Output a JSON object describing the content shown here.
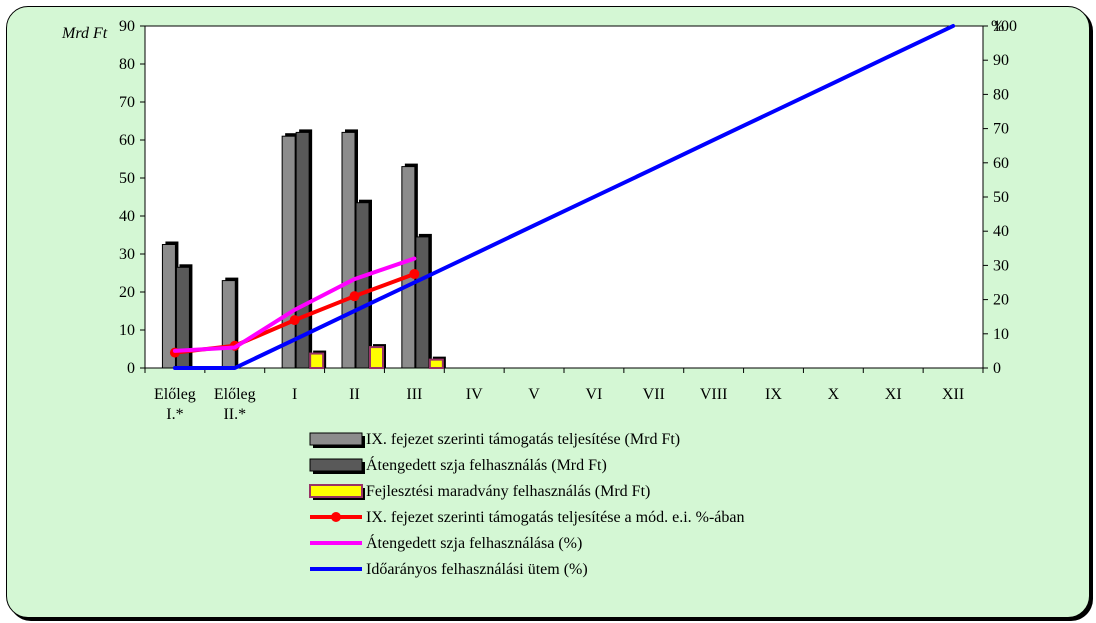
{
  "chart_data": {
    "type": "bar",
    "y_unit_left": "Mrd Ft",
    "y_unit_right": "%",
    "ylim_left": [
      0,
      90
    ],
    "ylim_right": [
      0,
      100
    ],
    "yticks_left": [
      "0",
      "10",
      "20",
      "30",
      "40",
      "50",
      "60",
      "70",
      "80",
      "90"
    ],
    "yticks_right": [
      "0",
      "10",
      "20",
      "30",
      "40",
      "50",
      "60",
      "70",
      "80",
      "90",
      "100"
    ],
    "categories": [
      [
        "Előleg",
        "I.*"
      ],
      [
        "Előleg",
        "II.*"
      ],
      [
        "I"
      ],
      [
        "II"
      ],
      [
        "III"
      ],
      [
        "IV"
      ],
      [
        "V"
      ],
      [
        "VI"
      ],
      [
        "VII"
      ],
      [
        "VIII"
      ],
      [
        "IX"
      ],
      [
        "X"
      ],
      [
        "XI"
      ],
      [
        "XII"
      ]
    ],
    "bar_series": [
      {
        "name": "IX. fejezet szerinti támogatás teljesítése (Mrd Ft)",
        "color": "#8c8c8c",
        "values": [
          32.5,
          23,
          61,
          62,
          53,
          null,
          null,
          null,
          null,
          null,
          null,
          null,
          null,
          null
        ]
      },
      {
        "name": "Átengedett szja felhasználás (Mrd Ft)",
        "color": "#595959",
        "values": [
          26.5,
          null,
          62,
          43.5,
          34.5,
          null,
          null,
          null,
          null,
          null,
          null,
          null,
          null,
          null
        ]
      },
      {
        "name": "Fejlesztési maradvány felhasználás (Mrd Ft)",
        "color": "#ffff00",
        "border": "#993366",
        "values": [
          null,
          null,
          3.8,
          5.5,
          2.2,
          null,
          null,
          null,
          null,
          null,
          null,
          null,
          null,
          null
        ]
      }
    ],
    "line_series": [
      {
        "name": "IX. fejezet szerinti támogatás teljesítése a mód. e.i. %-ában",
        "color": "#ff0000",
        "markers": true,
        "axis": "right",
        "values": [
          4.5,
          6.5,
          14,
          21,
          27.5,
          null,
          null,
          null,
          null,
          null,
          null,
          null,
          null,
          null
        ]
      },
      {
        "name": "Átengedett szja felhasználása (%)",
        "color": "#ff00ff",
        "markers": false,
        "axis": "right",
        "values": [
          5,
          6,
          17,
          26,
          32,
          null,
          null,
          null,
          null,
          null,
          null,
          null,
          null,
          null
        ]
      },
      {
        "name": "Időarányos felhasználási ütem (%)",
        "color": "#0000ff",
        "markers": false,
        "axis": "right",
        "values": [
          0,
          0,
          8.3,
          16.7,
          25,
          33.3,
          41.7,
          50,
          58.3,
          66.7,
          75,
          83.3,
          91.7,
          100
        ]
      }
    ],
    "legend_position": "bottom"
  }
}
